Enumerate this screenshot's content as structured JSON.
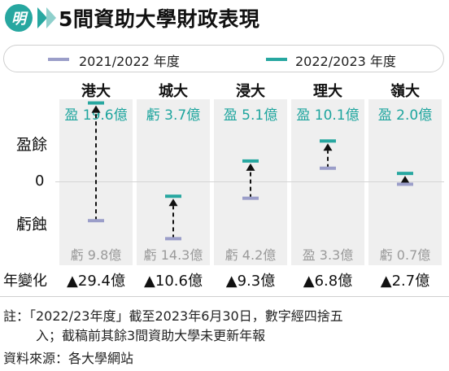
{
  "header": {
    "logo_text": "明",
    "title": "5間資助大學財政表現"
  },
  "legend": [
    {
      "label": "2021/2022 年度",
      "color": "#9b9ec9"
    },
    {
      "label": "2022/2023 年度",
      "color": "#27a7a0"
    }
  ],
  "axis": {
    "surplus_label": "盈餘",
    "zero_label": "0",
    "deficit_label": "虧蝕"
  },
  "row_label": "年變化",
  "chart_data": {
    "type": "dumbbell",
    "unit": "億",
    "categories": [
      "港大",
      "城大",
      "浸大",
      "理大",
      "嶺大"
    ],
    "series": [
      {
        "name": "2021/2022 年度",
        "values": [
          -9.8,
          -14.3,
          -4.2,
          3.3,
          -0.7
        ]
      },
      {
        "name": "2022/2023 年度",
        "values": [
          19.6,
          -3.7,
          5.1,
          10.1,
          2.0
        ]
      }
    ],
    "change": [
      29.4,
      10.6,
      9.3,
      6.8,
      2.7
    ],
    "labels_2223": [
      "盈 19.6億",
      "虧 3.7億",
      "盈 5.1億",
      "盈 10.1億",
      "盈 2.0億"
    ],
    "labels_2122": [
      "虧 9.8億",
      "虧 14.3億",
      "虧 4.2億",
      "盈 3.3億",
      "虧 0.7億"
    ],
    "change_labels": [
      "▲29.4億",
      "▲10.6億",
      "▲9.3億",
      "▲6.8億",
      "▲2.7億"
    ],
    "colors": {
      "y2122": "#9b9ec9",
      "y2223": "#27a7a0",
      "arrow": "#111111"
    }
  },
  "notes": [
    "註：「2022/23年度」截至2023年6月30日，數字經四捨五",
    "入；截稿前其餘3間資助大學未更新年報",
    "資料來源：各大學網站"
  ]
}
